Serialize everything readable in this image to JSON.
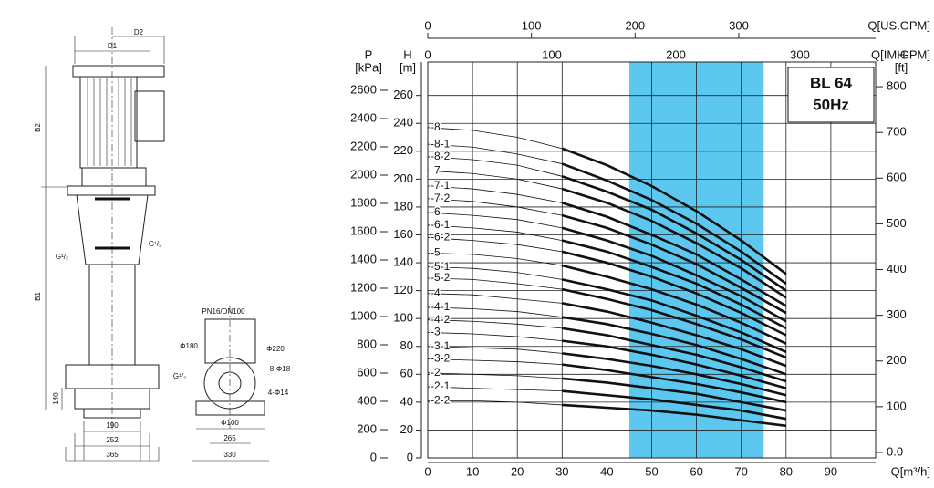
{
  "chart_data": {
    "type": "line",
    "title": "BL 64",
    "subtitle": "50Hz",
    "xlabel": "Q[m³/h]",
    "xlim": [
      0,
      100
    ],
    "xticks": [
      0,
      10,
      20,
      30,
      40,
      50,
      60,
      70,
      80,
      90
    ],
    "ylabel": "H",
    "yunit": "[m]",
    "ylim": [
      0,
      284
    ],
    "yticks": [
      0,
      20,
      40,
      60,
      80,
      100,
      120,
      140,
      160,
      180,
      200,
      220,
      240,
      260
    ],
    "y2label": "P",
    "y2unit": "[kPa]",
    "y2lim": [
      0,
      2800
    ],
    "y2ticks": [
      0,
      200,
      400,
      600,
      800,
      1000,
      1200,
      1400,
      1600,
      1800,
      2000,
      2200,
      2400,
      2600
    ],
    "y3label": "H",
    "y3unit": "[ft]",
    "y3lim": [
      -12,
      854
    ],
    "y3ticks": [
      {
        "value": 0,
        "label": "0.0"
      },
      100,
      200,
      300,
      400,
      500,
      600,
      700,
      800
    ],
    "x2label": "Q[US.GPM]",
    "x2lim": [
      0,
      432
    ],
    "x2ticks": [
      0,
      100,
      200,
      300
    ],
    "x3label": "Q[IM.GPM]",
    "x3lim": [
      0,
      361
    ],
    "x3ticks": [
      0,
      100,
      200,
      300
    ],
    "grid": true,
    "highlight": {
      "xlim": [
        45,
        75
      ],
      "color": "#5cc8ef"
    },
    "bold_range": [
      30,
      80
    ],
    "x": [
      0,
      10,
      20,
      30,
      40,
      50,
      60,
      70,
      80
    ],
    "series": [
      {
        "name": "-8",
        "color": "#111",
        "values": [
          237,
          235,
          230,
          222,
          210,
          195,
          177,
          156,
          132
        ]
      },
      {
        "name": "-8-1",
        "color": "#111",
        "values": [
          225,
          223,
          218,
          211,
          199,
          185,
          168,
          148,
          125
        ]
      },
      {
        "name": "-8-2",
        "color": "#111",
        "values": [
          216,
          214,
          210,
          202,
          191,
          178,
          161,
          142,
          120
        ]
      },
      {
        "name": "-7",
        "color": "#111",
        "values": [
          206,
          204,
          200,
          193,
          183,
          170,
          154,
          136,
          115
        ]
      },
      {
        "name": "-7-1",
        "color": "#111",
        "values": [
          195,
          193,
          189,
          183,
          173,
          160,
          146,
          128,
          109
        ]
      },
      {
        "name": "-7-2",
        "color": "#111",
        "values": [
          186,
          184,
          180,
          174,
          165,
          153,
          139,
          122,
          104
        ]
      },
      {
        "name": "-6",
        "color": "#111",
        "values": [
          176,
          174,
          171,
          165,
          156,
          145,
          131,
          116,
          98
        ]
      },
      {
        "name": "-6-1",
        "color": "#111",
        "values": [
          167,
          165,
          162,
          156,
          148,
          137,
          125,
          110,
          93
        ]
      },
      {
        "name": "-6-2",
        "color": "#111",
        "values": [
          158,
          156,
          153,
          148,
          140,
          130,
          118,
          104,
          88
        ]
      },
      {
        "name": "-5",
        "color": "#111",
        "values": [
          147,
          146,
          143,
          138,
          130,
          121,
          110,
          97,
          82
        ]
      },
      {
        "name": "-5-1",
        "color": "#111",
        "values": [
          137,
          136,
          133,
          128,
          121,
          113,
          102,
          90,
          76
        ]
      },
      {
        "name": "-5-2",
        "color": "#111",
        "values": [
          129,
          128,
          125,
          121,
          114,
          106,
          96,
          85,
          72
        ]
      },
      {
        "name": "-4",
        "color": "#111",
        "values": [
          118,
          117,
          114,
          111,
          105,
          97,
          88,
          78,
          66
        ]
      },
      {
        "name": "-4-1",
        "color": "#111",
        "values": [
          108,
          107,
          105,
          101,
          96,
          89,
          81,
          71,
          60
        ]
      },
      {
        "name": "-4-2",
        "color": "#111",
        "values": [
          99,
          98,
          96,
          93,
          88,
          81,
          74,
          65,
          55
        ]
      },
      {
        "name": "-3",
        "color": "#111",
        "values": [
          90,
          89,
          87,
          84,
          80,
          74,
          67,
          59,
          50
        ]
      },
      {
        "name": "-3-1",
        "color": "#111",
        "values": [
          80,
          79,
          78,
          75,
          71,
          66,
          60,
          53,
          45
        ]
      },
      {
        "name": "-3-2",
        "color": "#111",
        "values": [
          71,
          70,
          69,
          67,
          63,
          58,
          53,
          47,
          40
        ]
      },
      {
        "name": "-2",
        "color": "#111",
        "values": [
          61,
          60,
          59,
          57,
          54,
          50,
          46,
          40,
          34
        ]
      },
      {
        "name": "-2-1",
        "color": "#111",
        "values": [
          51,
          50,
          49,
          48,
          45,
          42,
          38,
          34,
          28
        ]
      },
      {
        "name": "-2-2",
        "color": "#111",
        "values": [
          41,
          41,
          40,
          38,
          36,
          34,
          31,
          27,
          23
        ]
      }
    ]
  },
  "drawing": {
    "labels": [
      "D2",
      "D1",
      "B2",
      "B1",
      "G¹/₂",
      "G¹/₂",
      "140",
      "190",
      "252",
      "365",
      "PN16/DN100",
      "Φ180",
      "Φ220",
      "8-Φ18",
      "G¹/₂",
      "4-Φ14",
      "Φ100",
      "265",
      "330"
    ]
  }
}
